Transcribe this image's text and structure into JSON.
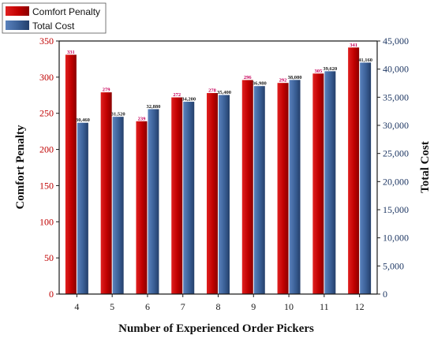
{
  "chart_data": {
    "type": "bar",
    "xlabel": "Number of Experienced Order Pickers",
    "ylabel_left": "Comfort Penalty",
    "ylabel_right": "Total Cost",
    "categories": [
      "4",
      "5",
      "6",
      "7",
      "8",
      "9",
      "10",
      "11",
      "12"
    ],
    "ylim_left": [
      0,
      350
    ],
    "ylim_right": [
      0,
      45000
    ],
    "yticks_left": [
      "0",
      "50",
      "100",
      "150",
      "200",
      "250",
      "300",
      "350"
    ],
    "yticks_right": [
      "0",
      "5,000",
      "10,000",
      "15,000",
      "20,000",
      "25,000",
      "30,000",
      "35,000",
      "40,000",
      "45,000"
    ],
    "legend_position": "top-left",
    "series": [
      {
        "name": "Comfort Penalty",
        "axis": "left",
        "color": "#c00000",
        "values": [
          331,
          279,
          239,
          272,
          278,
          296,
          292,
          305,
          341
        ],
        "labels": [
          "331",
          "279",
          "239",
          "272",
          "278",
          "296",
          "292",
          "305",
          "341"
        ]
      },
      {
        "name": "Total Cost",
        "axis": "right",
        "color": "#3a5f96",
        "values": [
          30460,
          31520,
          32880,
          34200,
          35400,
          36980,
          38080,
          39620,
          41160
        ],
        "labels": [
          "30,460",
          "31,520",
          "32,880",
          "34,200",
          "35,400",
          "36,980",
          "38,080",
          "39,620",
          "41,160"
        ]
      }
    ]
  }
}
